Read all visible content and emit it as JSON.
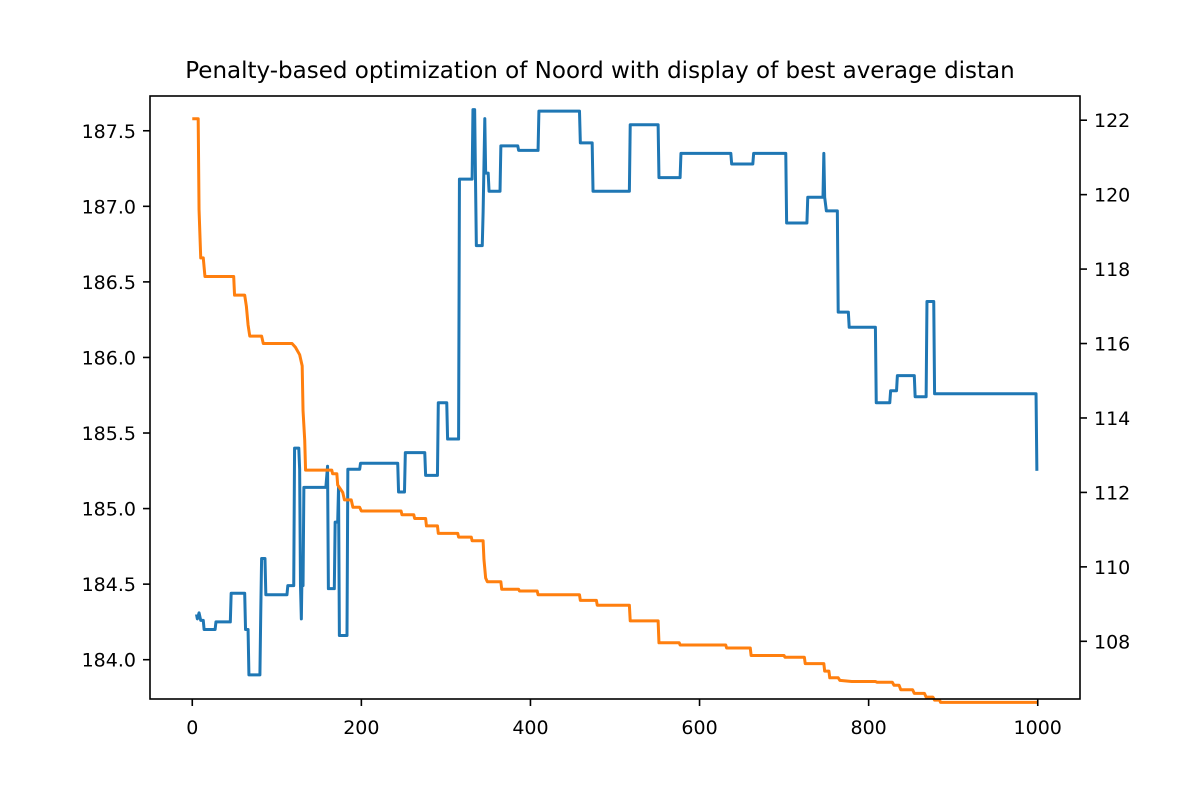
{
  "chart_data": {
    "type": "line",
    "title": "Penalty-based optimization of Noord with display of best average distan",
    "xlabel": "",
    "ylabel_left": "",
    "ylabel_right": "",
    "xlim": [
      -50,
      1050
    ],
    "ylim_left": [
      183.74,
      187.73
    ],
    "ylim_right": [
      106.45,
      122.65
    ],
    "grid": false,
    "x_ticks": [
      0,
      200,
      400,
      600,
      800,
      1000
    ],
    "y_ticks_left": [
      184.0,
      184.5,
      185.0,
      185.5,
      186.0,
      186.5,
      187.0,
      187.5
    ],
    "y_ticks_right": [
      108,
      110,
      112,
      114,
      116,
      118,
      120,
      122
    ],
    "series": [
      {
        "axis": "left",
        "color": "#1f77b4",
        "points": [
          [
            5,
            184.3
          ],
          [
            6,
            184.27
          ],
          [
            8,
            184.31
          ],
          [
            10,
            184.26
          ],
          [
            13,
            184.26
          ],
          [
            14,
            184.2
          ],
          [
            27,
            184.2
          ],
          [
            28,
            184.25
          ],
          [
            45,
            184.25
          ],
          [
            46,
            184.44
          ],
          [
            62,
            184.44
          ],
          [
            63,
            184.2
          ],
          [
            66,
            184.2
          ],
          [
            67,
            183.9
          ],
          [
            80,
            183.9
          ],
          [
            81,
            184.31
          ],
          [
            82,
            184.67
          ],
          [
            86,
            184.67
          ],
          [
            87,
            184.43
          ],
          [
            112,
            184.43
          ],
          [
            113,
            184.49
          ],
          [
            120,
            184.49
          ],
          [
            121,
            185.4
          ],
          [
            126,
            185.4
          ],
          [
            127,
            185.26
          ],
          [
            128,
            184.49
          ],
          [
            129,
            184.27
          ],
          [
            130,
            184.65
          ],
          [
            131,
            184.49
          ],
          [
            132,
            185.14
          ],
          [
            158,
            185.14
          ],
          [
            160,
            185.28
          ],
          [
            161,
            184.47
          ],
          [
            168,
            184.47
          ],
          [
            169,
            184.91
          ],
          [
            172,
            184.91
          ],
          [
            173,
            185.14
          ],
          [
            174,
            184.16
          ],
          [
            183,
            184.16
          ],
          [
            184,
            185.26
          ],
          [
            198,
            185.26
          ],
          [
            199,
            185.3
          ],
          [
            243,
            185.3
          ],
          [
            244,
            185.11
          ],
          [
            251,
            185.11
          ],
          [
            252,
            185.37
          ],
          [
            275,
            185.37
          ],
          [
            276,
            185.22
          ],
          [
            290,
            185.22
          ],
          [
            291,
            185.7
          ],
          [
            301,
            185.7
          ],
          [
            302,
            185.46
          ],
          [
            315,
            185.46
          ],
          [
            316,
            187.18
          ],
          [
            331,
            187.18
          ],
          [
            332,
            187.64
          ],
          [
            334,
            187.64
          ],
          [
            335,
            187.18
          ],
          [
            336,
            186.74
          ],
          [
            343,
            186.74
          ],
          [
            344,
            186.96
          ],
          [
            346,
            187.58
          ],
          [
            347,
            187.22
          ],
          [
            350,
            187.22
          ],
          [
            351,
            187.1
          ],
          [
            364,
            187.1
          ],
          [
            365,
            187.4
          ],
          [
            385,
            187.4
          ],
          [
            386,
            187.37
          ],
          [
            409,
            187.37
          ],
          [
            410,
            187.63
          ],
          [
            458,
            187.63
          ],
          [
            459,
            187.42
          ],
          [
            473,
            187.42
          ],
          [
            474,
            187.1
          ],
          [
            517,
            187.1
          ],
          [
            518,
            187.54
          ],
          [
            551,
            187.54
          ],
          [
            552,
            187.19
          ],
          [
            577,
            187.19
          ],
          [
            578,
            187.35
          ],
          [
            637,
            187.35
          ],
          [
            638,
            187.28
          ],
          [
            663,
            187.28
          ],
          [
            664,
            187.35
          ],
          [
            702,
            187.35
          ],
          [
            703,
            186.89
          ],
          [
            727,
            186.89
          ],
          [
            728,
            187.06
          ],
          [
            744,
            187.06
          ],
          [
            746,
            187.06
          ],
          [
            747,
            187.35
          ],
          [
            748,
            187.06
          ],
          [
            750,
            186.97
          ],
          [
            763,
            186.97
          ],
          [
            764,
            186.3
          ],
          [
            776,
            186.3
          ],
          [
            777,
            186.2
          ],
          [
            808,
            186.2
          ],
          [
            809,
            185.7
          ],
          [
            825,
            185.7
          ],
          [
            826,
            185.78
          ],
          [
            833,
            185.78
          ],
          [
            834,
            185.88
          ],
          [
            854,
            185.88
          ],
          [
            855,
            185.74
          ],
          [
            868,
            185.74
          ],
          [
            869,
            186.37
          ],
          [
            877,
            186.37
          ],
          [
            878,
            185.76
          ],
          [
            998,
            185.76
          ],
          [
            999,
            185.25
          ]
        ]
      },
      {
        "axis": "right",
        "color": "#ff7f0e",
        "points": [
          [
            0,
            122.04
          ],
          [
            7,
            122.04
          ],
          [
            8,
            119.6
          ],
          [
            10,
            118.3
          ],
          [
            13,
            118.3
          ],
          [
            15,
            117.8
          ],
          [
            49,
            117.8
          ],
          [
            50,
            117.3
          ],
          [
            62,
            117.3
          ],
          [
            64,
            117.0
          ],
          [
            66,
            116.5
          ],
          [
            68,
            116.2
          ],
          [
            82,
            116.2
          ],
          [
            84,
            116.0
          ],
          [
            118,
            116.0
          ],
          [
            122,
            115.9
          ],
          [
            127,
            115.7
          ],
          [
            130,
            115.4
          ],
          [
            131,
            114.2
          ],
          [
            133,
            113.4
          ],
          [
            134,
            112.6
          ],
          [
            165,
            112.6
          ],
          [
            166,
            112.5
          ],
          [
            171,
            112.5
          ],
          [
            172,
            112.2
          ],
          [
            178,
            112.0
          ],
          [
            180,
            111.8
          ],
          [
            188,
            111.8
          ],
          [
            190,
            111.6
          ],
          [
            198,
            111.6
          ],
          [
            200,
            111.5
          ],
          [
            247,
            111.5
          ],
          [
            248,
            111.4
          ],
          [
            262,
            111.4
          ],
          [
            263,
            111.3
          ],
          [
            276,
            111.3
          ],
          [
            277,
            111.1
          ],
          [
            290,
            111.1
          ],
          [
            291,
            110.9
          ],
          [
            314,
            110.9
          ],
          [
            315,
            110.8
          ],
          [
            330,
            110.8
          ],
          [
            331,
            110.7
          ],
          [
            344,
            110.7
          ],
          [
            345,
            110.2
          ],
          [
            347,
            109.7
          ],
          [
            349,
            109.6
          ],
          [
            365,
            109.6
          ],
          [
            366,
            109.4
          ],
          [
            386,
            109.4
          ],
          [
            387,
            109.35
          ],
          [
            408,
            109.35
          ],
          [
            409,
            109.25
          ],
          [
            458,
            109.25
          ],
          [
            459,
            109.1
          ],
          [
            478,
            109.1
          ],
          [
            479,
            108.97
          ],
          [
            517,
            108.97
          ],
          [
            518,
            108.55
          ],
          [
            551,
            108.55
          ],
          [
            552,
            107.96
          ],
          [
            576,
            107.96
          ],
          [
            577,
            107.9
          ],
          [
            631,
            107.9
          ],
          [
            632,
            107.82
          ],
          [
            660,
            107.82
          ],
          [
            661,
            107.62
          ],
          [
            700,
            107.62
          ],
          [
            701,
            107.57
          ],
          [
            724,
            107.57
          ],
          [
            725,
            107.4
          ],
          [
            747,
            107.4
          ],
          [
            748,
            107.2
          ],
          [
            753,
            107.2
          ],
          [
            754,
            107.02
          ],
          [
            764,
            107.02
          ],
          [
            766,
            106.95
          ],
          [
            780,
            106.92
          ],
          [
            808,
            106.92
          ],
          [
            810,
            106.9
          ],
          [
            828,
            106.9
          ],
          [
            830,
            106.82
          ],
          [
            836,
            106.82
          ],
          [
            838,
            106.7
          ],
          [
            852,
            106.7
          ],
          [
            854,
            106.6
          ],
          [
            866,
            106.6
          ],
          [
            868,
            106.5
          ],
          [
            876,
            106.5
          ],
          [
            878,
            106.42
          ],
          [
            884,
            106.42
          ],
          [
            885,
            106.36
          ],
          [
            1000,
            106.36
          ]
        ]
      }
    ]
  }
}
